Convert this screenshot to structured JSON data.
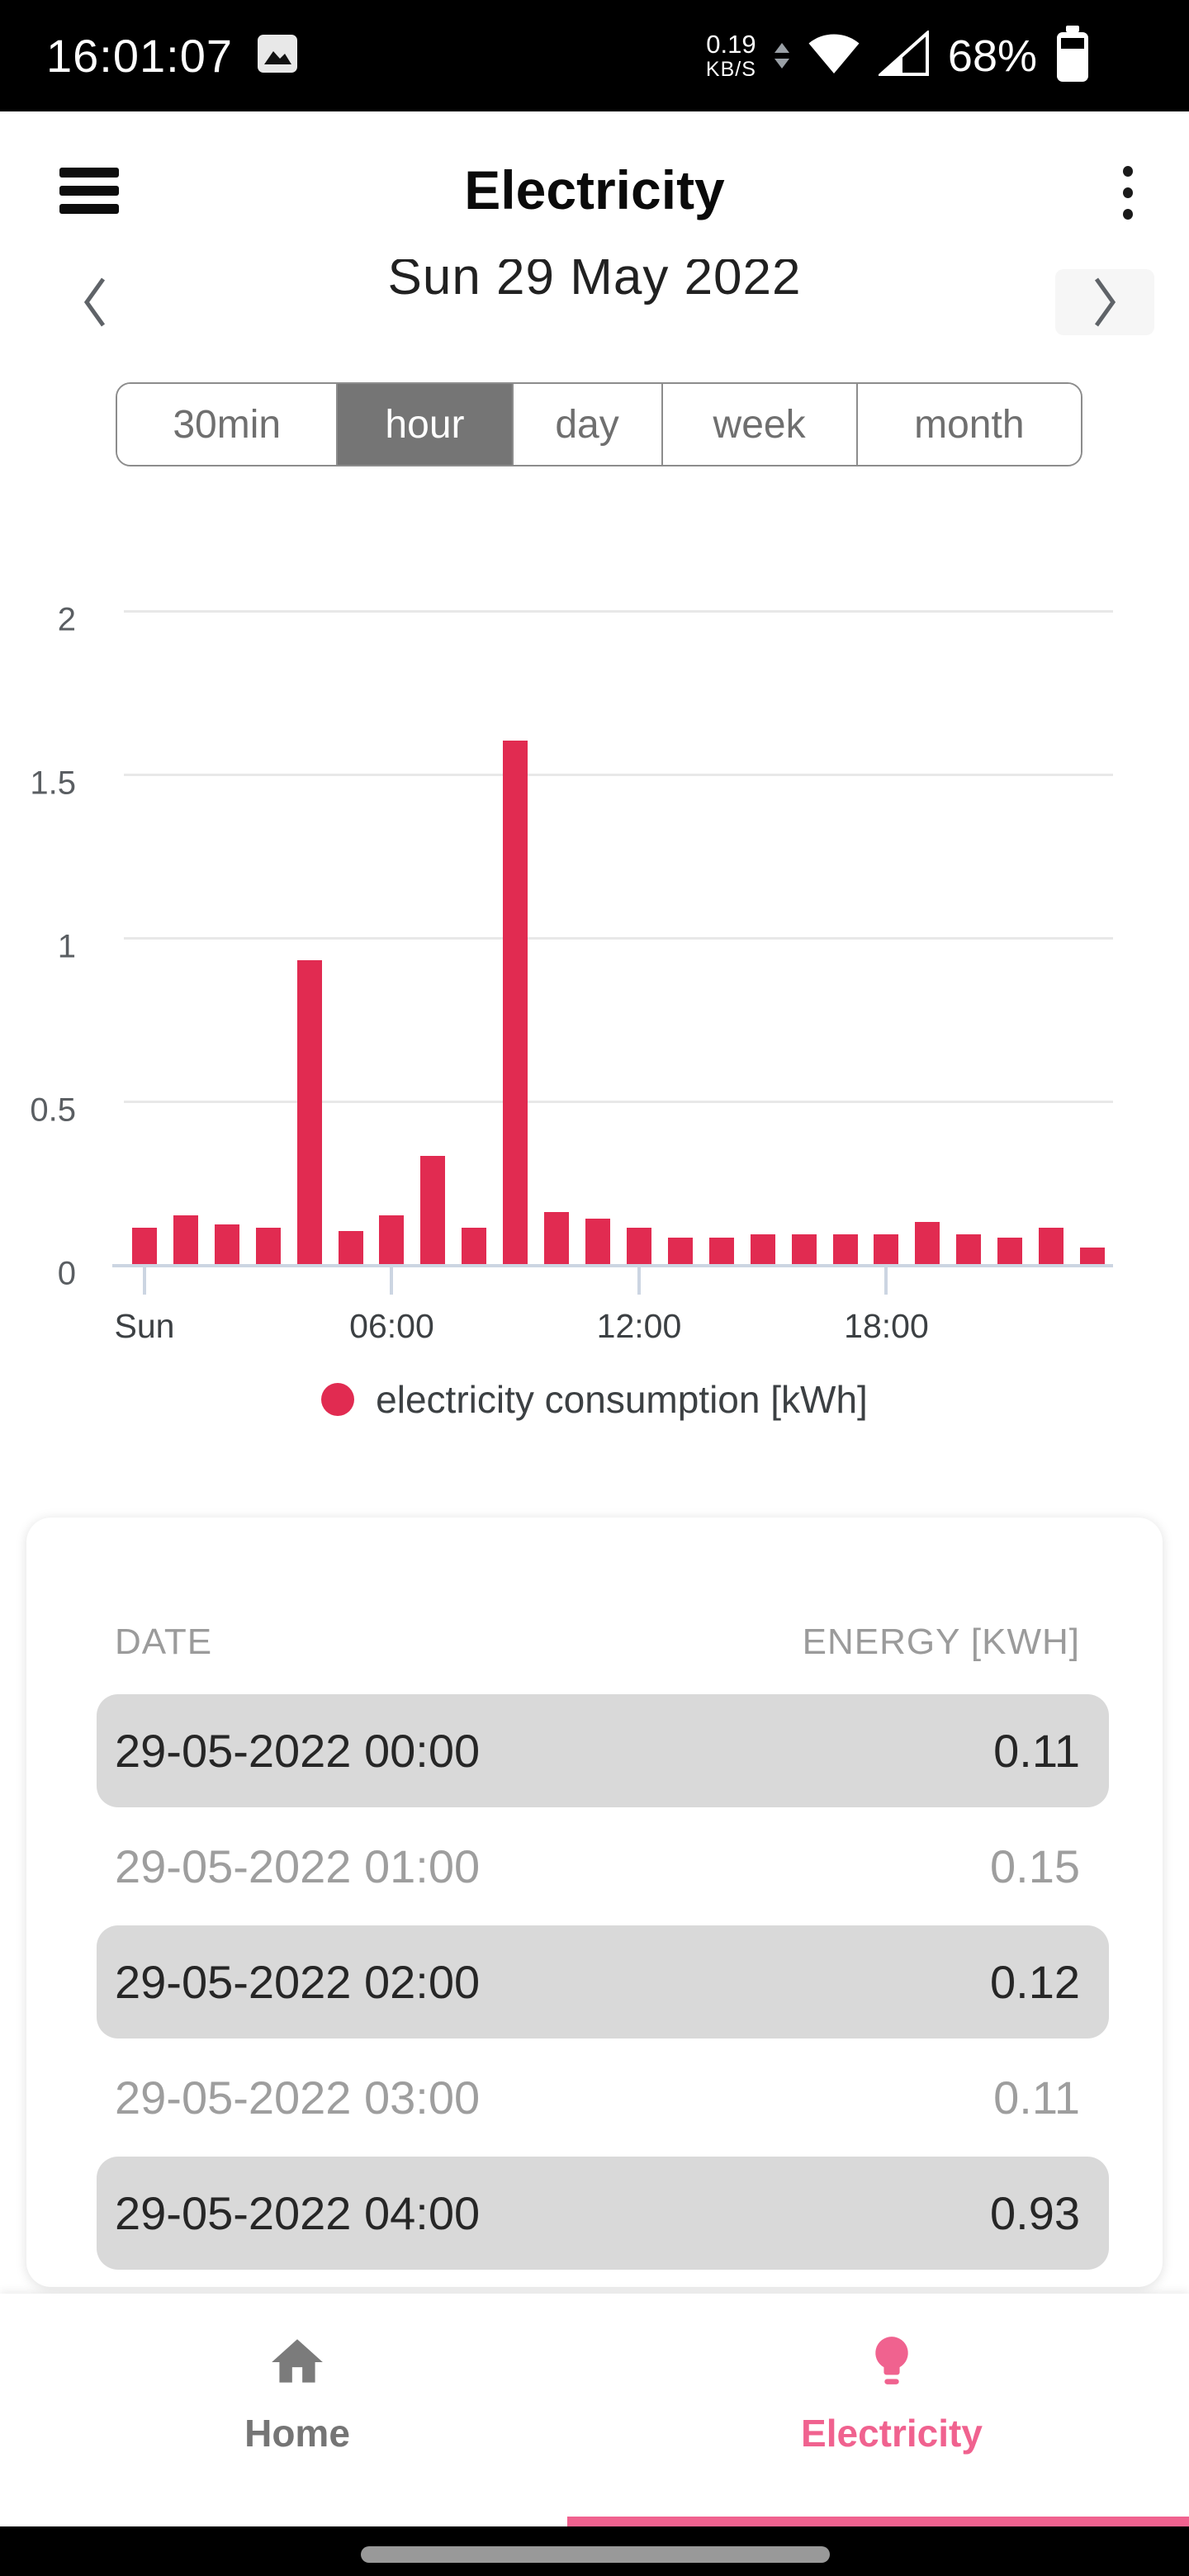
{
  "status_bar": {
    "time": "16:01:07",
    "net_speed_value": "0.19",
    "net_speed_unit": "KB/S",
    "battery_percent": "68%"
  },
  "header": {
    "title": "Electricity"
  },
  "date_nav": {
    "date_label": "Sun 29 May 2022"
  },
  "range_tabs": {
    "options": [
      "30min",
      "hour",
      "day",
      "week",
      "month"
    ],
    "selected": "hour"
  },
  "chart_data": {
    "type": "bar",
    "title": "",
    "categories": [
      "00:00",
      "01:00",
      "02:00",
      "03:00",
      "04:00",
      "05:00",
      "06:00",
      "07:00",
      "08:00",
      "09:00",
      "10:00",
      "11:00",
      "12:00",
      "13:00",
      "14:00",
      "15:00",
      "16:00",
      "17:00",
      "18:00",
      "19:00",
      "20:00",
      "21:00",
      "22:00",
      "23:00"
    ],
    "values": [
      0.11,
      0.15,
      0.12,
      0.11,
      0.93,
      0.1,
      0.15,
      0.33,
      0.11,
      1.6,
      0.16,
      0.14,
      0.11,
      0.08,
      0.08,
      0.09,
      0.09,
      0.09,
      0.09,
      0.13,
      0.09,
      0.08,
      0.11,
      0.05
    ],
    "series_name": "electricity consumption [kWh]",
    "xlabel": "",
    "ylabel": "",
    "ylim": [
      0,
      2
    ],
    "yticks": [
      "0",
      "0.5",
      "1",
      "1.5",
      "2"
    ],
    "ytick_values": [
      0,
      0.5,
      1,
      1.5,
      2
    ],
    "xticks": [
      {
        "hour": 0,
        "label": "Sun"
      },
      {
        "hour": 6,
        "label": "06:00"
      },
      {
        "hour": 12,
        "label": "12:00"
      },
      {
        "hour": 18,
        "label": "18:00"
      }
    ],
    "bar_color": "#e12b51",
    "grid": true,
    "legend_position": "bottom"
  },
  "legend": {
    "label": "electricity consumption [kWh]",
    "color": "#e12b51"
  },
  "table": {
    "columns": [
      "DATE",
      "ENERGY [KWH]"
    ],
    "rows": [
      {
        "date": "29-05-2022 00:00",
        "energy": "0.11",
        "highlighted": true
      },
      {
        "date": "29-05-2022 01:00",
        "energy": "0.15",
        "highlighted": false
      },
      {
        "date": "29-05-2022 02:00",
        "energy": "0.12",
        "highlighted": true
      },
      {
        "date": "29-05-2022 03:00",
        "energy": "0.11",
        "highlighted": false
      },
      {
        "date": "29-05-2022 04:00",
        "energy": "0.93",
        "highlighted": true
      }
    ]
  },
  "bottom_nav": {
    "items": [
      {
        "label": "Home",
        "active": false
      },
      {
        "label": "Electricity",
        "active": true
      }
    ],
    "accent": "#f0628f"
  }
}
